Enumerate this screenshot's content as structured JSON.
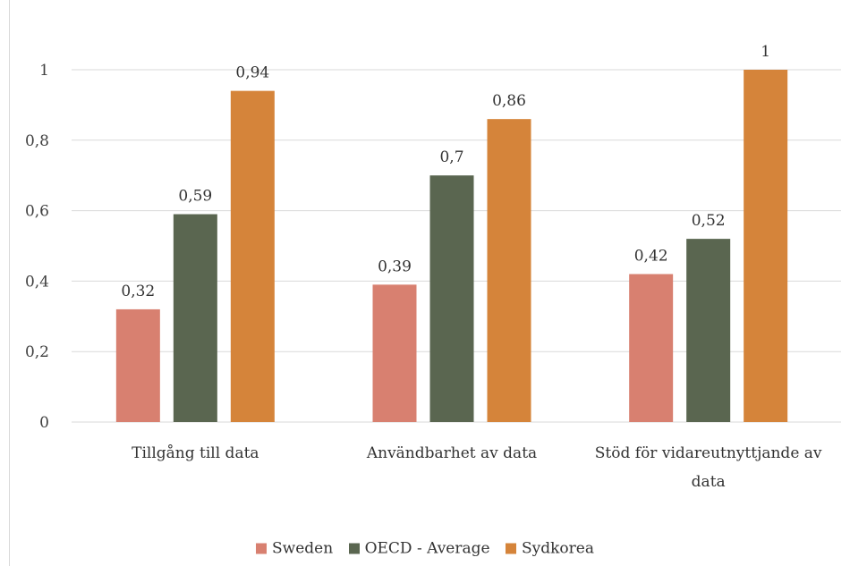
{
  "chart_data": {
    "type": "bar",
    "categories": [
      [
        "Tillgång till data"
      ],
      [
        "Användbarhet av data"
      ],
      [
        "Stöd för vidareutnyttjande av",
        "data"
      ]
    ],
    "series": [
      {
        "name": "Sweden",
        "color": "#d88070",
        "values": [
          0.32,
          0.39,
          0.42
        ],
        "labels": [
          "0,32",
          "0,39",
          "0,42"
        ]
      },
      {
        "name": "OECD - Average",
        "color": "#5a6650",
        "values": [
          0.59,
          0.7,
          0.52
        ],
        "labels": [
          "0,59",
          "0,7",
          "0,52"
        ]
      },
      {
        "name": "Sydkorea",
        "color": "#d5843a",
        "values": [
          0.94,
          0.86,
          1
        ],
        "labels": [
          "0,94",
          "0,86",
          "1"
        ]
      }
    ],
    "y_ticks": [
      {
        "value": 0,
        "label": "0"
      },
      {
        "value": 0.2,
        "label": "0,2"
      },
      {
        "value": 0.4,
        "label": "0,4"
      },
      {
        "value": 0.6,
        "label": "0,6"
      },
      {
        "value": 0.8,
        "label": "0,8"
      },
      {
        "value": 1,
        "label": "1"
      }
    ],
    "ylim": [
      0,
      1
    ],
    "grid": true,
    "legend_position": "bottom",
    "title": "",
    "xlabel": "",
    "ylabel": ""
  }
}
